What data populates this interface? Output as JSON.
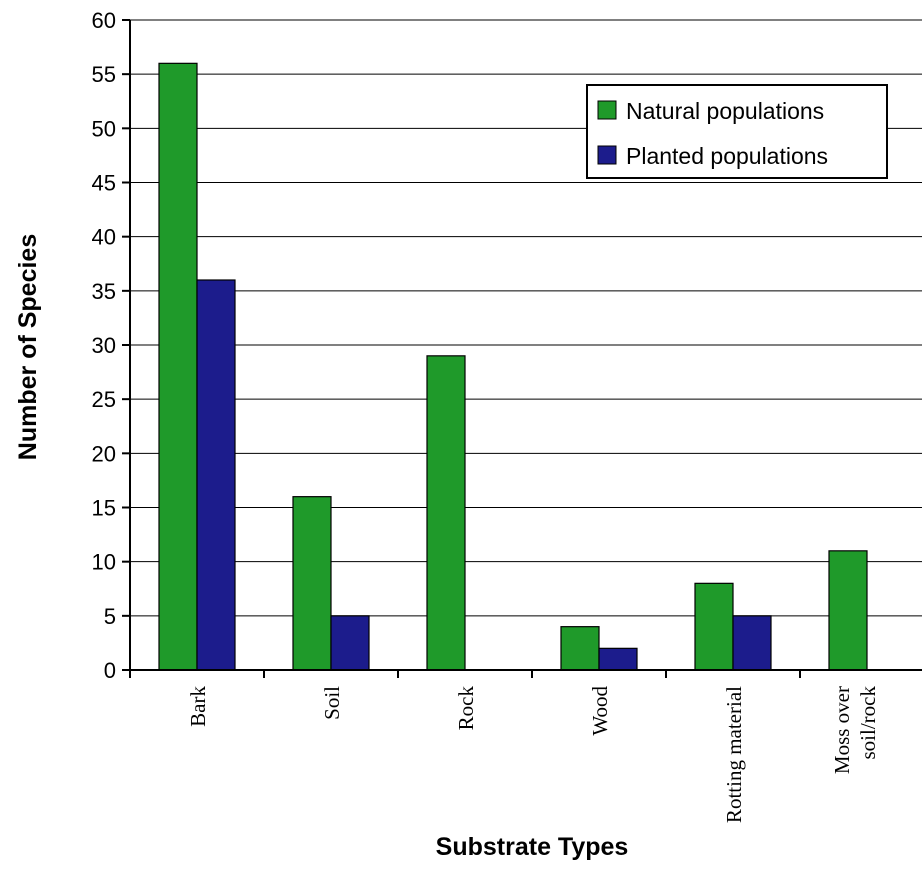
{
  "chart_data": {
    "type": "bar",
    "title": "",
    "xlabel": "Substrate Types",
    "ylabel": "Number of Species",
    "ylim": [
      0,
      60
    ],
    "yticks": [
      0,
      5,
      10,
      15,
      20,
      25,
      30,
      35,
      40,
      45,
      50,
      55,
      60
    ],
    "grid": true,
    "legend_position": "top-right",
    "categories": [
      [
        "Bark"
      ],
      [
        "Soil"
      ],
      [
        "Rock"
      ],
      [
        "Wood"
      ],
      [
        "Rotting material"
      ],
      [
        "Moss over",
        "soil/rock"
      ]
    ],
    "series": [
      {
        "name": "Natural populations",
        "color": "#1f9a2a",
        "values": [
          56,
          16,
          29,
          4,
          8,
          11
        ]
      },
      {
        "name": "Planted populations",
        "color": "#1c1c8c",
        "values": [
          36,
          5,
          0,
          2,
          5,
          0
        ]
      }
    ]
  }
}
